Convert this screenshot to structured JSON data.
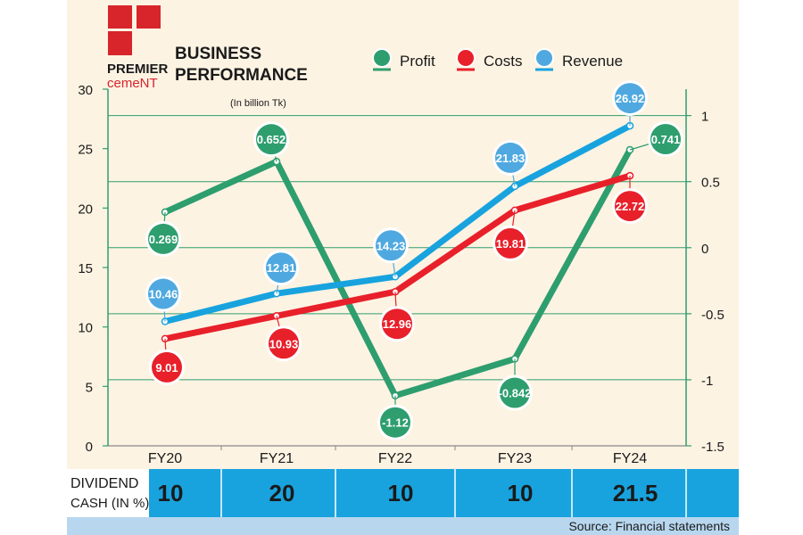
{
  "brand": {
    "name_line1": "PREMIER",
    "name_line2": "cemeNT"
  },
  "header": {
    "title_line1": "BUSINESS",
    "title_line2": "PERFORMANCE",
    "unit_note": "(In billion Tk)"
  },
  "chart_data": {
    "type": "line",
    "categories": [
      "FY20",
      "FY21",
      "FY22",
      "FY23",
      "FY24"
    ],
    "left_axis": {
      "min": 0,
      "max": 30,
      "ticks": [
        "0",
        "5",
        "10",
        "15",
        "20",
        "25",
        "30"
      ]
    },
    "right_axis": {
      "min": -1.5,
      "max": 1.2,
      "ticks": [
        "1",
        "0.5",
        "0",
        "-0.5",
        "-1",
        "-1.5"
      ],
      "tick_values": [
        1,
        0.5,
        0,
        -0.5,
        -1,
        -1.5
      ]
    },
    "series": [
      {
        "name": "Profit",
        "axis": "right",
        "color": "#2e9e6e",
        "values": [
          0.269,
          0.652,
          -1.12,
          -0.842,
          0.741
        ],
        "labels": [
          "0.269",
          "0.652",
          "-1.12",
          "-0.842",
          "0.741"
        ]
      },
      {
        "name": "Costs",
        "axis": "left",
        "color": "#e8202a",
        "values": [
          9.01,
          10.93,
          12.96,
          19.81,
          22.72
        ],
        "labels": [
          "9.01",
          "10.93",
          "12.96",
          "19.81",
          "22.72"
        ]
      },
      {
        "name": "Revenue",
        "axis": "left",
        "color": "#18a3de",
        "values": [
          10.46,
          12.81,
          14.23,
          21.83,
          26.92
        ],
        "labels": [
          "10.46",
          "12.81",
          "14.23",
          "21.83",
          "26.92"
        ]
      }
    ]
  },
  "dividend": {
    "label_line1": "DIVIDEND",
    "label_line2": "CASH (IN %)",
    "values": [
      "10",
      "20",
      "10",
      "10",
      "21.5"
    ]
  },
  "source": "Source: Financial statements",
  "colors": {
    "accent_blue": "#18a3de",
    "profit_green": "#2e9e6e",
    "cost_red": "#e8202a",
    "revenue_blue": "#4fa9e0",
    "brand_red": "#d7252b",
    "panel": "#fdf3e3",
    "footer_blue": "#b8d7ef"
  }
}
